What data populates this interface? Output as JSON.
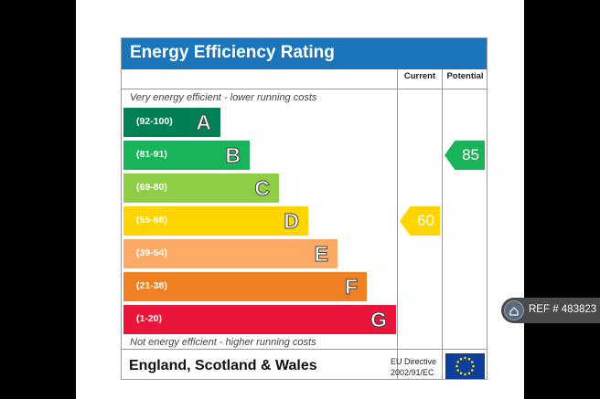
{
  "chart_data": {
    "type": "table",
    "title": "Energy Efficiency Rating",
    "columns": [
      "Current",
      "Potential"
    ],
    "top_caption": "Very energy efficient - lower running costs",
    "bottom_caption": "Not energy efficient - higher running costs",
    "bands": [
      {
        "range": "(92-100)",
        "letter": "A",
        "color": "#008054"
      },
      {
        "range": "(81-91)",
        "letter": "B",
        "color": "#19b459"
      },
      {
        "range": "(69-80)",
        "letter": "C",
        "color": "#8dce46"
      },
      {
        "range": "(55-68)",
        "letter": "D",
        "color": "#ffd500"
      },
      {
        "range": "(39-54)",
        "letter": "E",
        "color": "#fcaa65"
      },
      {
        "range": "(21-38)",
        "letter": "F",
        "color": "#ef8023"
      },
      {
        "range": "(1-20)",
        "letter": "G",
        "color": "#e9153b"
      }
    ],
    "current": {
      "value": "60",
      "band": "D",
      "color": "#ffd500"
    },
    "potential": {
      "value": "85",
      "band": "B",
      "color": "#19b459"
    }
  },
  "footer": {
    "region": "England, Scotland & Wales",
    "directive_line1": "EU Directive",
    "directive_line2": "2002/91/EC"
  },
  "ref_badge": {
    "text": "REF # 483823",
    "icon": "home-icon"
  }
}
